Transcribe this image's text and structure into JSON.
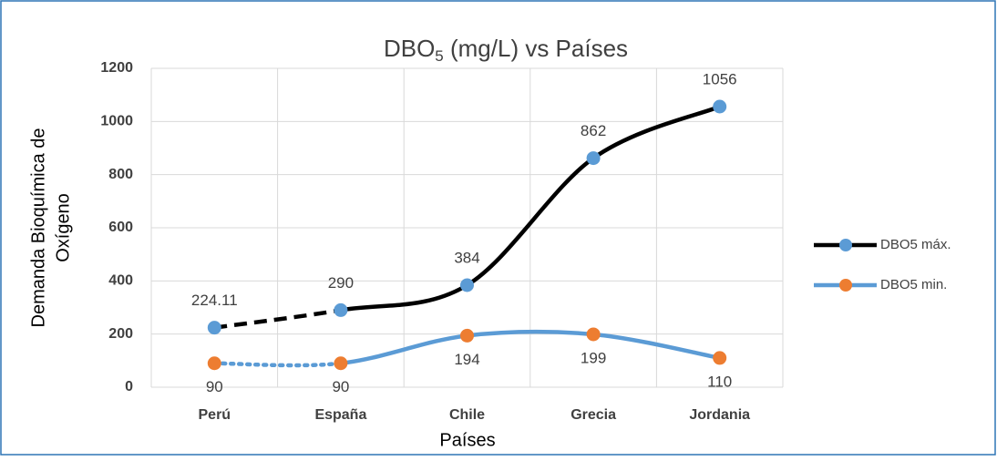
{
  "chart_data": {
    "type": "line",
    "title": {
      "main": "DBO",
      "sub": "5",
      "rest": " (mg/L) vs Países"
    },
    "xlabel": "Países",
    "ylabel": [
      "Demanda Bioquímica de",
      "Oxígeno"
    ],
    "categories": [
      "Perú",
      "España",
      "Chile",
      "Grecia",
      "Jordania"
    ],
    "series": [
      {
        "name": "DBO5 máx.",
        "color": "#000000",
        "marker_color": "#5b9bd5",
        "first_segment": "dashed",
        "label_side": "above",
        "values": [
          224.11,
          290,
          384,
          862,
          1056
        ]
      },
      {
        "name": "DBO5 min.",
        "color": "#5b9bd5",
        "marker_color": "#ed7d31",
        "first_segment": "dotted",
        "label_side": "below",
        "values": [
          90,
          90,
          194,
          199,
          110
        ]
      }
    ],
    "ylim": [
      0,
      1200
    ],
    "yticks": [
      0,
      200,
      400,
      600,
      800,
      1000,
      1200
    ],
    "grid": true,
    "smooth": true,
    "legend": "right"
  }
}
